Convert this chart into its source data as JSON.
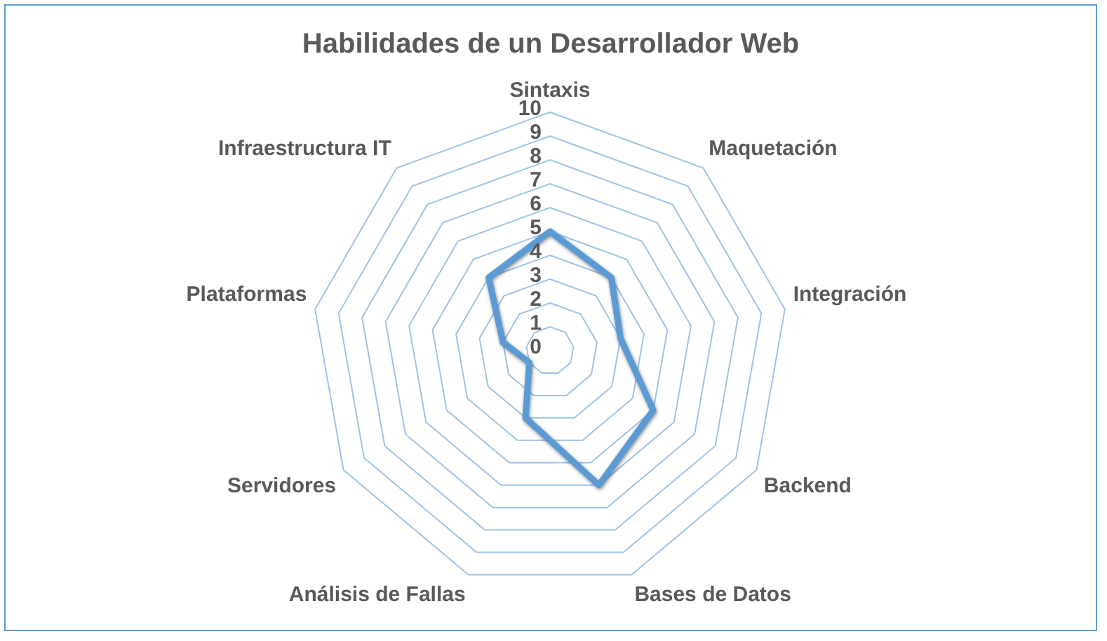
{
  "chart_data": {
    "type": "radar",
    "title": "Habilidades de un Desarrollador Web",
    "categories": [
      "Sintaxis",
      "Maquetación",
      "Integración",
      "Backend",
      "Bases de Datos",
      "Análisis de Fallas",
      "Servidores",
      "Plataformas",
      "Infraestructura IT"
    ],
    "series": [
      {
        "color": "#5b9bd5",
        "values": [
          5,
          4,
          3,
          5,
          6,
          3,
          1,
          2,
          4
        ]
      }
    ],
    "ylim": [
      0,
      10
    ],
    "yticks": [
      0,
      1,
      2,
      3,
      4,
      5,
      6,
      7,
      8,
      9,
      10
    ],
    "grid": true,
    "legend": false,
    "marker": "none",
    "line_style": "solid"
  }
}
